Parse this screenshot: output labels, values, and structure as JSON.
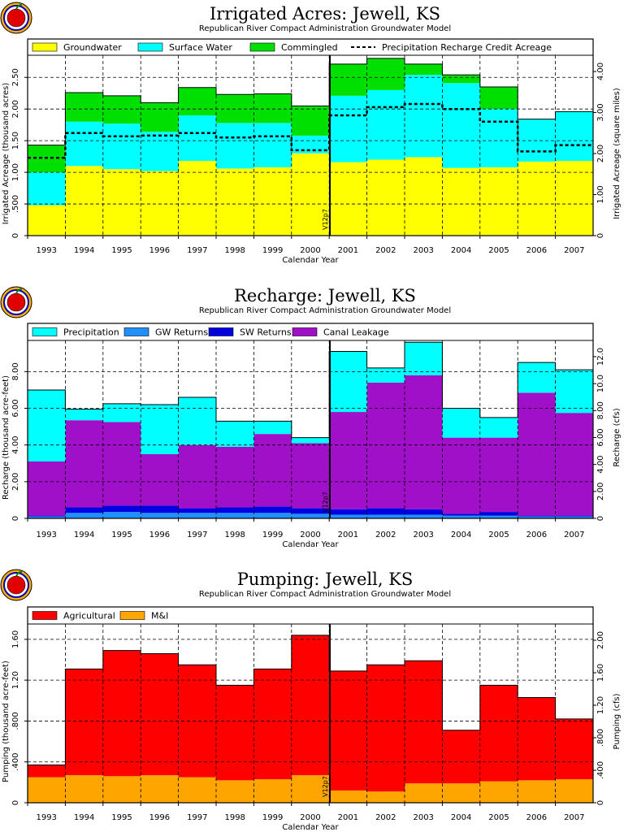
{
  "subtitle": "Republican River Compact Administration Groundwater Model",
  "xlabel": "Calendar Year",
  "years": [
    "1993",
    "1994",
    "1995",
    "1996",
    "1997",
    "1998",
    "1999",
    "2000",
    "2001",
    "2002",
    "2003",
    "2004",
    "2005",
    "2006",
    "2007"
  ],
  "marker_label": "V12p7",
  "colors": {
    "groundwater": "#ffff00",
    "surface_water": "#00ffff",
    "commingled": "#00e000",
    "precipitation": "#00ffff",
    "gw_returns": "#2090ff",
    "sw_returns": "#0000e0",
    "canal_leakage": "#a010c8",
    "agricultural": "#ff0000",
    "mi": "#ffa500"
  },
  "chart_data": [
    {
      "type": "area",
      "title": "Irrigated Acres: Jewell, KS",
      "subtitle": "Republican River Compact Administration Groundwater Model",
      "xlabel": "Calendar Year",
      "ylabel": "Irrigated Acreage (thousand acres)",
      "ylabel_right": "Irrigated Acreage (square miles)",
      "ylim": [
        0,
        2.85
      ],
      "yticks": [
        "0",
        ".500",
        "1.00",
        "1.50",
        "2.00",
        "2.50"
      ],
      "yticks_right": [
        "0",
        "1.00",
        "2.00",
        "3.00",
        "4.00"
      ],
      "legend_position": "top",
      "grid": true,
      "categories": [
        "1993",
        "1994",
        "1995",
        "1996",
        "1997",
        "1998",
        "1999",
        "2000",
        "2001",
        "2002",
        "2003",
        "2004",
        "2005",
        "2006",
        "2007"
      ],
      "series": [
        {
          "name": "Groundwater",
          "key": "groundwater",
          "values": [
            0.48,
            1.1,
            1.05,
            1.02,
            1.18,
            1.06,
            1.08,
            1.3,
            1.16,
            1.2,
            1.24,
            1.07,
            1.08,
            1.17,
            1.18
          ]
        },
        {
          "name": "Surface Water",
          "key": "surface_water",
          "values": [
            0.52,
            0.7,
            0.72,
            0.62,
            0.72,
            0.72,
            0.7,
            0.28,
            1.05,
            1.1,
            1.3,
            1.34,
            0.92,
            0.67,
            0.78
          ]
        },
        {
          "name": "Commingled",
          "key": "commingled",
          "values": [
            0.43,
            0.46,
            0.44,
            0.46,
            0.44,
            0.45,
            0.46,
            0.47,
            0.5,
            0.5,
            0.17,
            0.13,
            0.35,
            0,
            0
          ]
        }
      ],
      "line": {
        "name": "Precipitation Recharge Credit Acreage",
        "values": [
          1.23,
          1.62,
          1.57,
          1.58,
          1.62,
          1.55,
          1.57,
          1.35,
          1.9,
          2.03,
          2.08,
          2.0,
          1.8,
          1.33,
          1.43
        ]
      }
    },
    {
      "type": "area",
      "title": "Recharge: Jewell, KS",
      "subtitle": "Republican River Compact Administration Groundwater Model",
      "xlabel": "Calendar Year",
      "ylabel": "Recharge (thousand acre-feet)",
      "ylabel_right": "Recharge (cfs)",
      "ylim": [
        0,
        9.7
      ],
      "yticks": [
        "0",
        "2.00",
        "4.00",
        "6.00",
        "8.00"
      ],
      "yticks_right": [
        "0",
        "2.00",
        "4.00",
        "6.00",
        "8.00",
        "10.0",
        "12.0"
      ],
      "legend_position": "top",
      "grid": true,
      "categories": [
        "1993",
        "1994",
        "1995",
        "1996",
        "1997",
        "1998",
        "1999",
        "2000",
        "2001",
        "2002",
        "2003",
        "2004",
        "2005",
        "2006",
        "2007"
      ],
      "series": [
        {
          "name": "GW Returns",
          "key": "gw_returns",
          "values": [
            0.1,
            0.3,
            0.35,
            0.3,
            0.3,
            0.3,
            0.3,
            0.25,
            0.2,
            0.2,
            0.2,
            0.15,
            0.15,
            0.1,
            0.1
          ]
        },
        {
          "name": "SW Returns",
          "key": "sw_returns",
          "values": [
            0.05,
            0.3,
            0.35,
            0.4,
            0.25,
            0.3,
            0.35,
            0.3,
            0.3,
            0.35,
            0.3,
            0.1,
            0.2,
            0.05,
            0.05
          ]
        },
        {
          "name": "Canal Leakage",
          "key": "canal_leakage",
          "values": [
            2.95,
            4.75,
            4.55,
            2.8,
            3.45,
            3.3,
            3.95,
            3.55,
            5.3,
            6.85,
            7.3,
            4.15,
            4.05,
            6.7,
            5.6
          ]
        },
        {
          "name": "Precipitation",
          "key": "precipitation",
          "values": [
            3.9,
            0.6,
            1.0,
            2.7,
            2.6,
            1.4,
            0.7,
            0.3,
            3.3,
            0.8,
            1.8,
            1.6,
            1.1,
            1.65,
            2.35
          ]
        }
      ]
    },
    {
      "type": "area",
      "title": "Pumping: Jewell, KS",
      "subtitle": "Republican River Compact Administration Groundwater Model",
      "xlabel": "Calendar Year",
      "ylabel": "Pumping (thousand acre-feet)",
      "ylabel_right": "Pumping (cfs)",
      "ylim": [
        0,
        1.75
      ],
      "yticks": [
        "0",
        ".400",
        ".800",
        "1.20",
        "1.60"
      ],
      "yticks_right": [
        "0",
        ".400",
        ".800",
        "1.20",
        "1.60",
        "2.00"
      ],
      "legend_position": "top",
      "grid": true,
      "categories": [
        "1993",
        "1994",
        "1995",
        "1996",
        "1997",
        "1998",
        "1999",
        "2000",
        "2001",
        "2002",
        "2003",
        "2004",
        "2005",
        "2006",
        "2007"
      ],
      "series": [
        {
          "name": "M&I",
          "key": "mi",
          "values": [
            0.25,
            0.27,
            0.26,
            0.27,
            0.25,
            0.22,
            0.23,
            0.27,
            0.12,
            0.11,
            0.19,
            0.19,
            0.21,
            0.22,
            0.23
          ]
        },
        {
          "name": "Agricultural",
          "key": "agricultural",
          "values": [
            0.12,
            1.04,
            1.23,
            1.19,
            1.1,
            0.93,
            1.08,
            1.37,
            1.17,
            1.24,
            1.2,
            0.52,
            0.94,
            0.81,
            0.59
          ]
        }
      ]
    }
  ]
}
